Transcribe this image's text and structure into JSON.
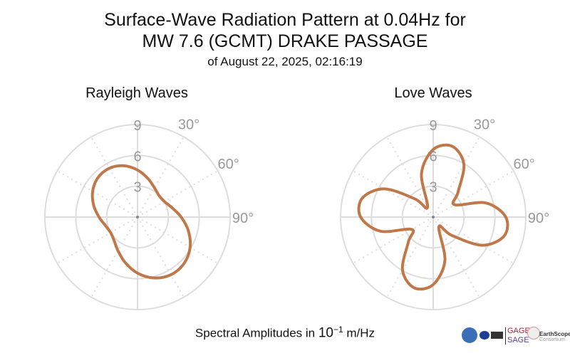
{
  "title_line1": "Surface-Wave Radiation Pattern at 0.04Hz for",
  "title_line2": "MW 7.6 (GCMT) DRAKE PASSAGE",
  "subtitle": "of August 22, 2025, 02:16:19",
  "xlabel_text": "Spectral Amplitudes in ",
  "xlabel_unit_base": "10",
  "xlabel_unit_exp": "−1",
  "xlabel_unit_tail": " m/Hz",
  "logos": {
    "gage": "GAGE",
    "sage": "SAGE",
    "earthscope": "EarthScope",
    "consortium": "Consortium"
  },
  "colors": {
    "line": "#c0784a",
    "grid": "#dddddd",
    "label": "#999999"
  },
  "chart_data": [
    {
      "type": "line",
      "polar": true,
      "title": "Rayleigh Waves",
      "angle_ticks": [
        "30°",
        "60°",
        "90°"
      ],
      "radial_ticks": [
        "3",
        "6",
        "9"
      ],
      "rlim": [
        0,
        9
      ],
      "theta_deg": [
        0,
        15,
        30,
        45,
        60,
        75,
        90,
        105,
        120,
        135,
        150,
        165,
        180,
        195,
        210,
        225,
        240,
        255,
        270,
        285,
        300,
        315,
        330,
        345
      ],
      "r": [
        4.58,
        3.89,
        3.29,
        2.96,
        3.02,
        3.48,
        4.24,
        5.11,
        5.9,
        6.39,
        6.48,
        6.13,
        5.45,
        4.59,
        3.79,
        3.22,
        3.02,
        3.22,
        3.74,
        4.41,
        5.03,
        5.43,
        5.48,
        5.17
      ]
    },
    {
      "type": "line",
      "polar": true,
      "title": "Love Waves",
      "angle_ticks": [
        "30°",
        "60°",
        "90°"
      ],
      "radial_ticks": [
        "3",
        "6",
        "9"
      ],
      "rlim": [
        0,
        9
      ],
      "theta_deg": [
        0,
        15,
        30,
        45,
        60,
        75,
        90,
        105,
        120,
        135,
        150,
        165,
        180,
        195,
        210,
        225,
        240,
        255,
        270,
        285,
        300,
        315,
        330,
        345
      ],
      "r": [
        6.57,
        7.13,
        5.96,
        3.41,
        2.4,
        5.31,
        7.05,
        7.13,
        5.48,
        2.49,
        1.1,
        4.39,
        6.57,
        7.13,
        5.96,
        3.41,
        2.4,
        5.31,
        7.05,
        7.13,
        5.48,
        2.49,
        1.1,
        4.39
      ]
    }
  ]
}
